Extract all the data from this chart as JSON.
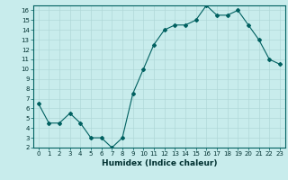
{
  "x": [
    0,
    1,
    2,
    3,
    4,
    5,
    6,
    7,
    8,
    9,
    10,
    11,
    12,
    13,
    14,
    15,
    16,
    17,
    18,
    19,
    20,
    21,
    22,
    23
  ],
  "y": [
    6.5,
    4.5,
    4.5,
    5.5,
    4.5,
    3.0,
    3.0,
    2.0,
    3.0,
    7.5,
    10.0,
    12.5,
    14.0,
    14.5,
    14.5,
    15.0,
    16.5,
    15.5,
    15.5,
    16.0,
    14.5,
    13.0,
    11.0,
    10.5
  ],
  "xlim": [
    -0.5,
    23.5
  ],
  "ylim": [
    2,
    16.5
  ],
  "yticks": [
    2,
    3,
    4,
    5,
    6,
    7,
    8,
    9,
    10,
    11,
    12,
    13,
    14,
    15,
    16
  ],
  "xticks": [
    0,
    1,
    2,
    3,
    4,
    5,
    6,
    7,
    8,
    9,
    10,
    11,
    12,
    13,
    14,
    15,
    16,
    17,
    18,
    19,
    20,
    21,
    22,
    23
  ],
  "xlabel": "Humidex (Indice chaleur)",
  "line_color": "#006060",
  "marker": "D",
  "marker_size": 2,
  "background_color": "#c8ecec",
  "grid_color": "#b0d8d8"
}
